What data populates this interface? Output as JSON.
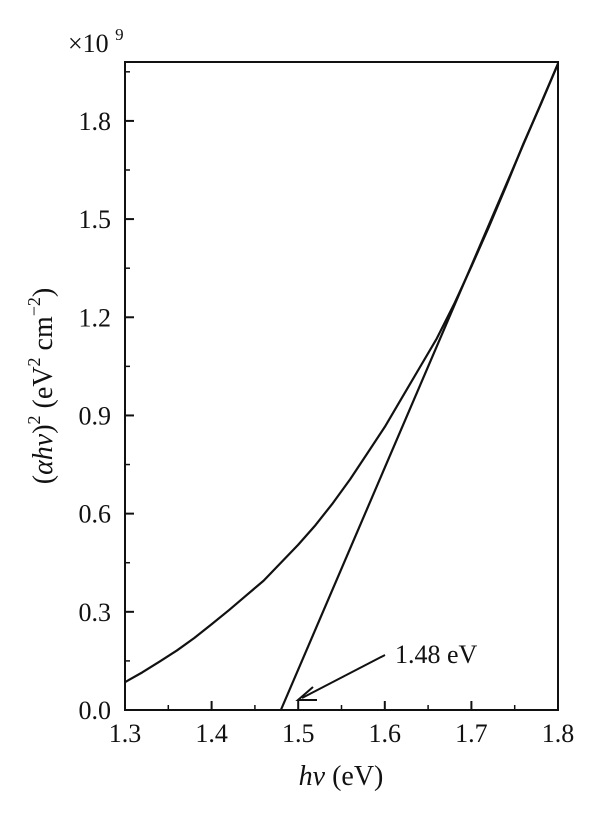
{
  "chart_data": {
    "type": "line",
    "x_ticks": [
      "1.3",
      "1.4",
      "1.5",
      "1.6",
      "1.7",
      "1.8"
    ],
    "y_ticks": [
      "0.0",
      "0.3",
      "0.6",
      "0.9",
      "1.2",
      "1.5",
      "1.8"
    ],
    "y_multiplier_base": "×10",
    "y_multiplier_exp": "9",
    "xlim": [
      1.3,
      1.8
    ],
    "ylim": [
      0.0,
      1.98
    ],
    "xlabel": {
      "main": "hν",
      "unit": " (eV)"
    },
    "ylabel": {
      "prefix": "(",
      "alpha": "α",
      "hv": "hν",
      "close": ")",
      "exp": "2",
      "unit_open": " (eV",
      "unit_exp1": "2",
      "unit_mid": " cm",
      "unit_exp2": "−2",
      "unit_close": ")"
    },
    "grid": false,
    "series": [
      {
        "x": [
          1.3,
          1.32,
          1.34,
          1.36,
          1.38,
          1.4,
          1.42,
          1.44,
          1.46,
          1.48,
          1.5,
          1.52,
          1.54,
          1.56,
          1.58,
          1.6,
          1.62,
          1.64,
          1.66,
          1.68,
          1.7,
          1.72,
          1.74,
          1.76,
          1.78,
          1.8
        ],
        "y": [
          0.085,
          0.115,
          0.148,
          0.182,
          0.22,
          0.262,
          0.305,
          0.35,
          0.395,
          0.45,
          0.505,
          0.565,
          0.632,
          0.705,
          0.785,
          0.865,
          0.955,
          1.045,
          1.135,
          1.24,
          1.355,
          1.475,
          1.6,
          1.73,
          1.85,
          1.975
        ]
      },
      {
        "x": [
          1.48,
          1.8
        ],
        "y": [
          0.0,
          1.975
        ]
      }
    ],
    "annotations": [
      {
        "text": "1.48 eV",
        "x": 1.48,
        "y": 0.0
      }
    ]
  }
}
